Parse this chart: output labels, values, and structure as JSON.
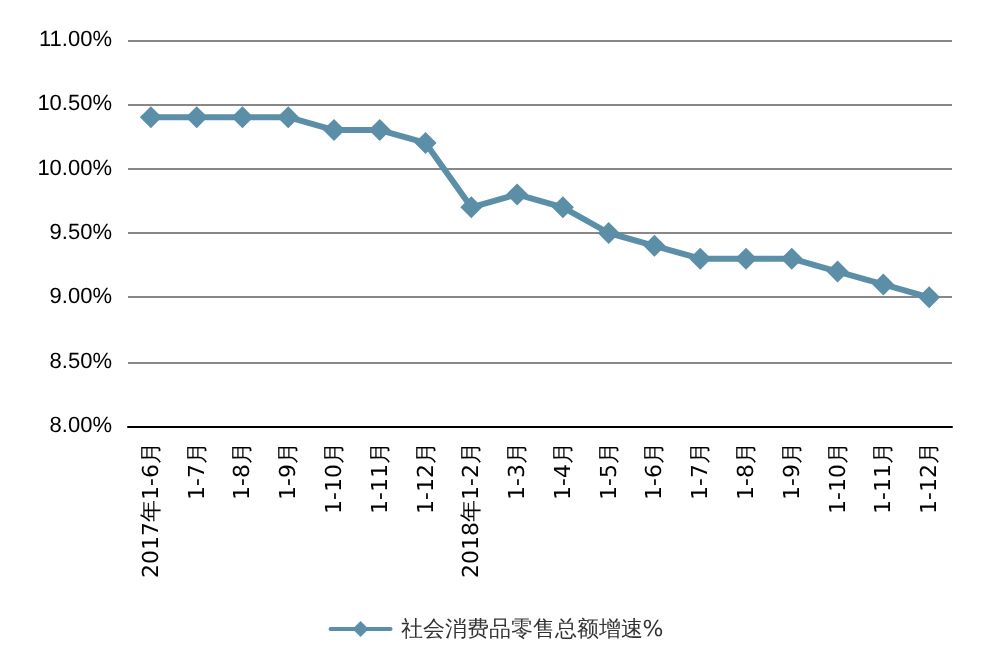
{
  "chart_data": {
    "type": "line",
    "categories": [
      "2017年1-6月",
      "1-7月",
      "1-8月",
      "1-9月",
      "1-10月",
      "1-11月",
      "1-12月",
      "2018年1-2月",
      "1-3月",
      "1-4月",
      "1-5月",
      "1-6月",
      "1-7月",
      "1-8月",
      "1-9月",
      "1-10月",
      "1-11月",
      "1-12月"
    ],
    "series": [
      {
        "name": "社会消费品零售总额增速%",
        "color": "#5b8fa8",
        "values": [
          10.4,
          10.4,
          10.4,
          10.4,
          10.3,
          10.3,
          10.2,
          9.7,
          9.8,
          9.7,
          9.5,
          9.4,
          9.3,
          9.3,
          9.3,
          9.2,
          9.1,
          9.0
        ]
      }
    ],
    "ylim": [
      8,
      11
    ],
    "yticks": [
      {
        "value": 8,
        "label": "8.00%"
      },
      {
        "value": 8.5,
        "label": "8.50%"
      },
      {
        "value": 9,
        "label": "9.00%"
      },
      {
        "value": 9.5,
        "label": "9.50%"
      },
      {
        "value": 10,
        "label": "10.00%"
      },
      {
        "value": 10.5,
        "label": "10.50%"
      },
      {
        "value": 11,
        "label": "11.00%"
      }
    ],
    "grid": "y",
    "legend": "bottom",
    "marker": "diamond",
    "line_style": "solid"
  }
}
